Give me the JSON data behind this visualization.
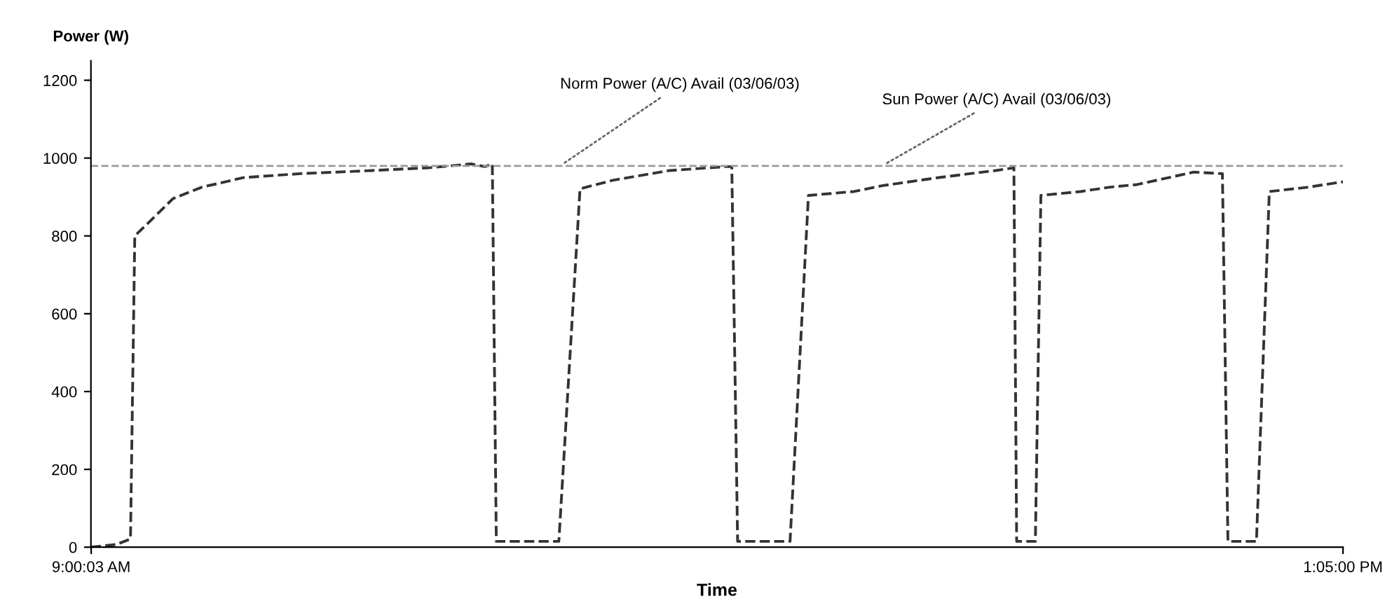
{
  "chart_data": {
    "type": "line",
    "ylabel": "Power (W)",
    "xlabel": "Time",
    "x": [
      9.0,
      9.083,
      9.129,
      9.143,
      9.176,
      9.268,
      9.361,
      9.499,
      9.684,
      9.916,
      10.101,
      10.239,
      10.285,
      10.309,
      10.322,
      10.378,
      10.526,
      10.595,
      10.702,
      10.887,
      11.072,
      11.09,
      11.109,
      11.141,
      11.28,
      11.34,
      11.488,
      11.58,
      11.765,
      11.95,
      12.01,
      12.019,
      12.043,
      12.08,
      12.098,
      12.227,
      12.32,
      12.412,
      12.597,
      12.69,
      12.708,
      12.727,
      12.801,
      12.843,
      12.967,
      13.083
    ],
    "series": [
      {
        "color": "#333333",
        "values": [
          0,
          7,
          21,
          800,
          825,
          896,
          925,
          950,
          960,
          968,
          975,
          985,
          978,
          985,
          15,
          15,
          15,
          921,
          943,
          968,
          978,
          978,
          15,
          15,
          15,
          904,
          914,
          929,
          950,
          968,
          975,
          15,
          15,
          15,
          904,
          914,
          925,
          932,
          964,
          960,
          15,
          15,
          15,
          914,
          925,
          939
        ]
      }
    ],
    "line_style": "dashed",
    "marker": "none",
    "grid": false,
    "xlim": [
      9.0,
      13.0834
    ],
    "xticks": [
      {
        "value": 9.00083,
        "label": "9:00:03 AM"
      },
      {
        "value": 13.08333,
        "label": "1:05:00 PM"
      }
    ],
    "ylim": [
      0,
      1250
    ],
    "yticks": [
      0,
      200,
      400,
      600,
      800,
      1000,
      1200
    ],
    "ref_lines": [
      {
        "axis": "y",
        "value": 980,
        "color": "#999999",
        "line_style": "dashed"
      }
    ],
    "annotations": [
      {
        "text": "Norm Power (A/C) Avail (03/06/03)",
        "x": 10.53,
        "y": 980
      },
      {
        "text": "Sun Power (A/C) Avail (03/06/03)",
        "x": 11.58,
        "y": 980
      }
    ]
  }
}
